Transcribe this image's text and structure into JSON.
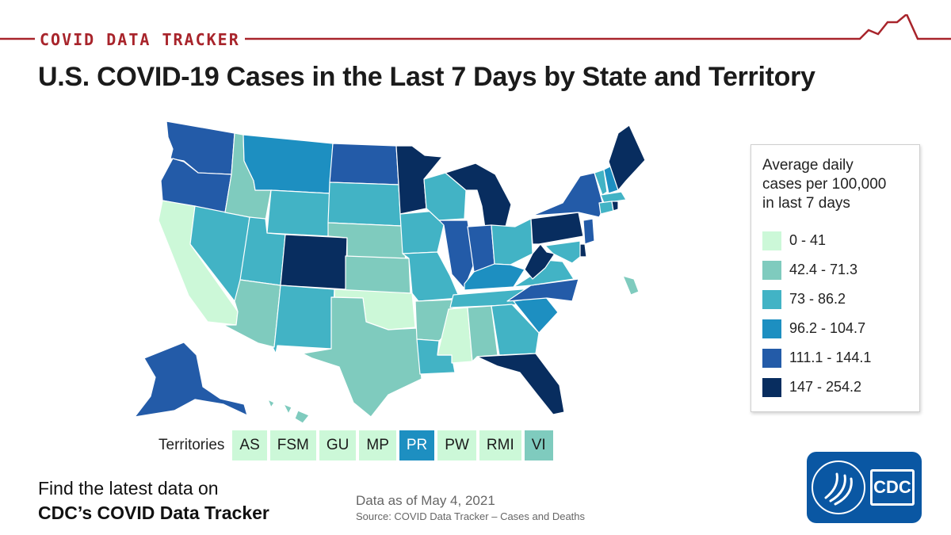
{
  "header": {
    "tracker_label": "COVID DATA TRACKER",
    "accent_color": "#a8242b"
  },
  "title": "U.S. COVID-19 Cases in the Last 7 Days by State and Territory",
  "legend": {
    "title_lines": [
      "Average daily",
      "cases per 100,000",
      "in last 7 days"
    ],
    "bins": [
      {
        "label": "0 - 41",
        "color": "#ccf8d8"
      },
      {
        "label": "42.4 - 71.3",
        "color": "#7fcbbe"
      },
      {
        "label": "73 - 86.2",
        "color": "#42b3c5"
      },
      {
        "label": "96.2 - 104.7",
        "color": "#1d8fc1"
      },
      {
        "label": "111.1 - 144.1",
        "color": "#235ba8"
      },
      {
        "label": "147 - 254.2",
        "color": "#082d5f"
      }
    ]
  },
  "territories": {
    "title": "Territories",
    "items": [
      {
        "label": "AS",
        "bin": 0
      },
      {
        "label": "FSM",
        "bin": 0
      },
      {
        "label": "GU",
        "bin": 0
      },
      {
        "label": "MP",
        "bin": 0
      },
      {
        "label": "PR",
        "bin": 3
      },
      {
        "label": "PW",
        "bin": 0
      },
      {
        "label": "RMI",
        "bin": 0
      },
      {
        "label": "VI",
        "bin": 1
      }
    ]
  },
  "footer": {
    "promo_line1": "Find the latest data on",
    "promo_line2": "CDC’s COVID Data Tracker",
    "as_of": "Data as of May 4, 2021",
    "source": "Source: COVID Data Tracker – Cases and Deaths"
  },
  "logo": {
    "text": "CDC",
    "color": "#0a57a3"
  },
  "state_bins": {
    "WA": 4,
    "OR": 4,
    "CA": 0,
    "NV": 2,
    "ID": 1,
    "MT": 3,
    "WY": 2,
    "UT": 2,
    "AZ": 1,
    "CO": 5,
    "NM": 2,
    "ND": 4,
    "SD": 2,
    "NE": 1,
    "KS": 1,
    "OK": 0,
    "TX": 1,
    "MN": 5,
    "IA": 2,
    "MO": 2,
    "AR": 1,
    "LA": 2,
    "WI": 2,
    "IL": 4,
    "MI": 5,
    "IN": 4,
    "OH": 2,
    "KY": 3,
    "TN": 2,
    "MS": 0,
    "AL": 1,
    "GA": 2,
    "FL": 5,
    "SC": 3,
    "NC": 4,
    "VA": 2,
    "WV": 5,
    "PA": 5,
    "NY": 4,
    "VT": 2,
    "NH": 3,
    "ME": 5,
    "MA": 2,
    "CT": 2,
    "RI": 5,
    "NJ": 4,
    "DE": 5,
    "MD": 2,
    "AK": 4,
    "HI": 1
  }
}
